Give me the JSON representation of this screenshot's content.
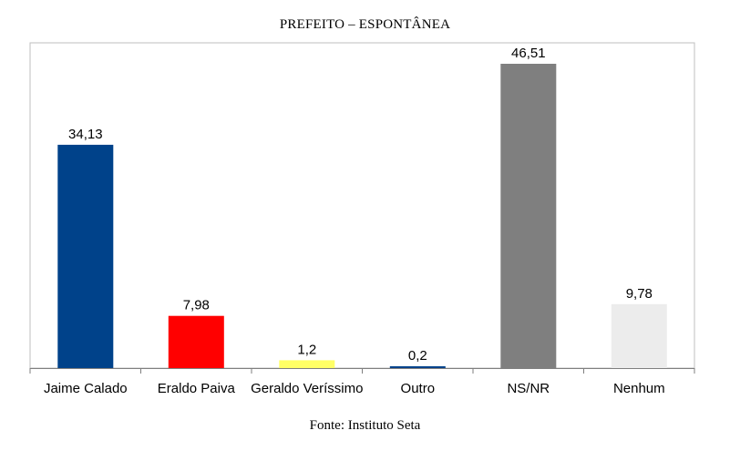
{
  "chart_data": {
    "type": "bar",
    "title": "PREFEITO – ESPONTÂNEA",
    "source": "Fonte: Instituto Seta",
    "categories": [
      "Jaime Calado",
      "Eraldo Paiva",
      "Geraldo Veríssimo",
      "Outro",
      "NS/NR",
      "Nenhum"
    ],
    "values": [
      34.13,
      7.98,
      1.2,
      0.2,
      46.51,
      9.78
    ],
    "value_labels": [
      "34,13",
      "7,98",
      "1,2",
      "0,2",
      "46,51",
      "9,78"
    ],
    "colors": [
      "#00428a",
      "#ff0000",
      "#ffff66",
      "#00428a",
      "#7f7f7f",
      "#ececec"
    ],
    "xlabel": "",
    "ylabel": "",
    "ylim": [
      0,
      46.51
    ],
    "grid": false,
    "legend": "none"
  }
}
